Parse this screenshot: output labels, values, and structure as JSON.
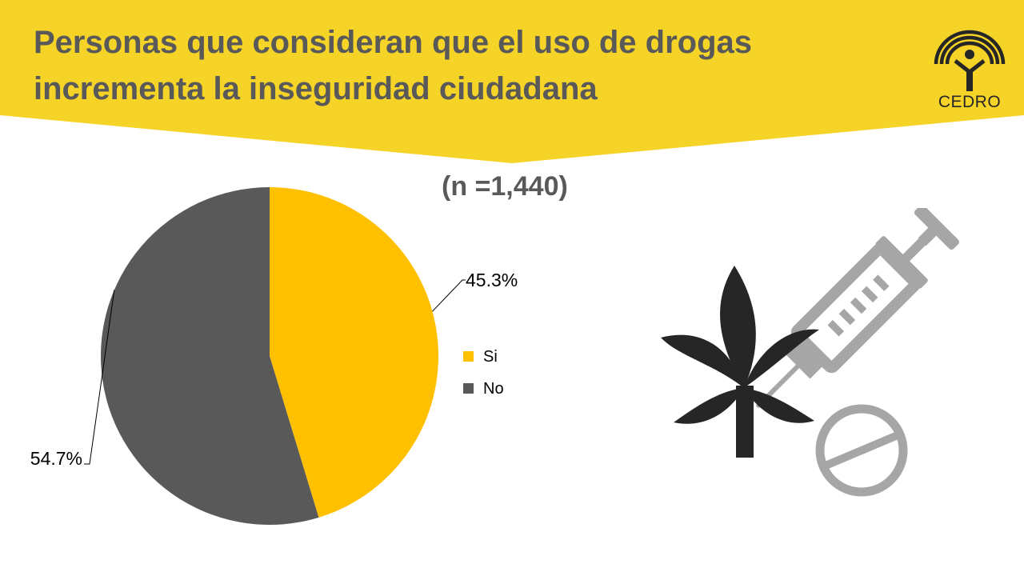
{
  "title": {
    "line1": "Personas que consideran que el uso de drogas",
    "line2": "incrementa la inseguridad ciudadana"
  },
  "sample": "(n =1,440)",
  "logo": {
    "text": "CEDRO"
  },
  "colors": {
    "banner": "#f5d327",
    "si": "#ffc000",
    "no": "#595959",
    "title": "#595959",
    "leaf": "#262626",
    "syringe": "#a6a6a6"
  },
  "chart_data": {
    "type": "pie",
    "categories": [
      "Si",
      "No"
    ],
    "values": [
      45.3,
      54.7
    ],
    "labels": [
      "45.3%",
      "54.7%"
    ],
    "colors": [
      "#ffc000",
      "#595959"
    ],
    "legend_position": "right",
    "start_angle": "12 o'clock, clockwise"
  },
  "icons": [
    "cannabis-leaf-icon",
    "syringe-icon",
    "pill-icon"
  ]
}
